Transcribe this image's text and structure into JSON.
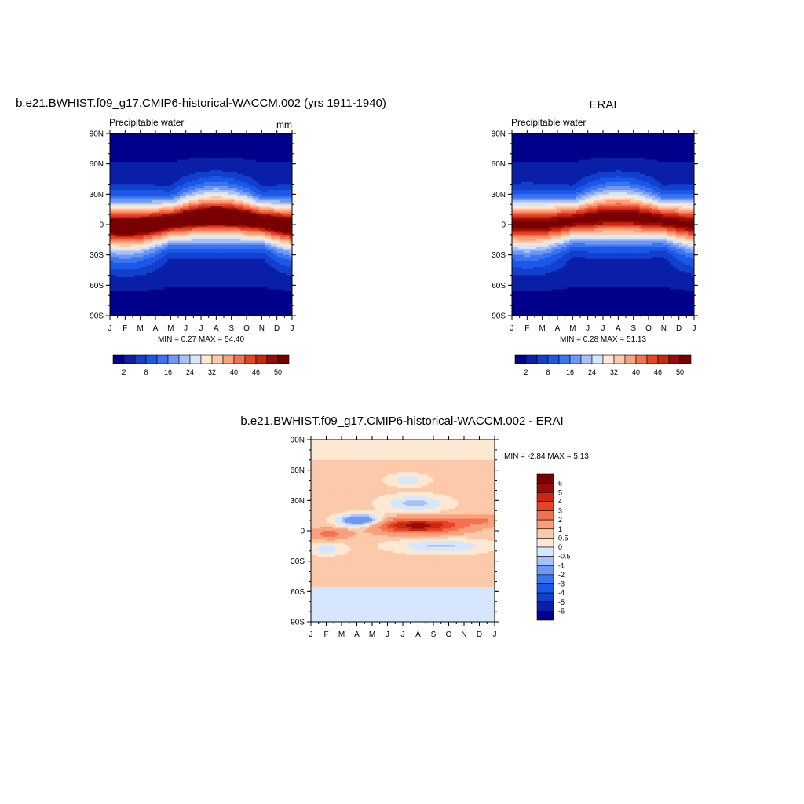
{
  "chart_data": [
    {
      "type": "heatmap",
      "id": "model",
      "title": "b.e21.BWHIST.f09_g17.CMIP6-historical-WACCM.002 (yrs 1911-1940)",
      "subtitle_left": "Precipitable water",
      "units": "mm",
      "x_tick_labels": [
        "J",
        "F",
        "M",
        "A",
        "M",
        "J",
        "J",
        "A",
        "S",
        "O",
        "N",
        "D",
        "J"
      ],
      "y_tick_labels": [
        "90N",
        "60N",
        "30N",
        "0",
        "30S",
        "60S",
        "90S"
      ],
      "xlim": [
        0,
        12
      ],
      "ylim": [
        -90,
        90
      ],
      "stats": "MIN =   0.27 MAX =  54.40",
      "colorbar_ticks": [
        "2",
        "8",
        "16",
        "24",
        "32",
        "40",
        "46",
        "50"
      ],
      "itcz": {
        "peak": 54.4,
        "lat_jan": -2,
        "lat_amp": 10
      }
    },
    {
      "type": "heatmap",
      "id": "obs",
      "title": "ERAI",
      "subtitle_left": "Precipitable water",
      "x_tick_labels": [
        "J",
        "F",
        "M",
        "A",
        "M",
        "J",
        "J",
        "A",
        "S",
        "O",
        "N",
        "D",
        "J"
      ],
      "y_tick_labels": [
        "90N",
        "60N",
        "30N",
        "0",
        "30S",
        "60S",
        "90S"
      ],
      "xlim": [
        0,
        12
      ],
      "ylim": [
        -90,
        90
      ],
      "stats": "MIN =   0.28 MAX =  51.13",
      "colorbar_ticks": [
        "2",
        "8",
        "16",
        "24",
        "32",
        "40",
        "46",
        "50"
      ],
      "itcz": {
        "peak": 51.1,
        "lat_jan": 0,
        "lat_amp": 8
      }
    },
    {
      "type": "heatmap",
      "id": "diff",
      "title": "b.e21.BWHIST.f09_g17.CMIP6-historical-WACCM.002 - ERAI",
      "x_tick_labels": [
        "J",
        "F",
        "M",
        "A",
        "M",
        "J",
        "J",
        "A",
        "S",
        "O",
        "N",
        "D",
        "J"
      ],
      "y_tick_labels": [
        "90N",
        "60N",
        "30N",
        "0",
        "30S",
        "60S",
        "90S"
      ],
      "xlim": [
        0,
        12
      ],
      "ylim": [
        -90,
        90
      ],
      "stats": "MIN =  -2.84 MAX =   5.13",
      "colorbar_ticks": [
        "6",
        "5",
        "4",
        "3",
        "2",
        "1",
        "0.5",
        "0",
        "-0.5",
        "-1",
        "-2",
        "-3",
        "-4",
        "-5",
        "-6"
      ]
    }
  ],
  "colors": {
    "main_scale": [
      "#00008a",
      "#0a1fa8",
      "#1240cc",
      "#1c58e8",
      "#3a74f4",
      "#6e98f8",
      "#a8c0fa",
      "#d6e6fc",
      "#fde9d3",
      "#fcc9aa",
      "#f9a07c",
      "#f47150",
      "#e84424",
      "#c8280e",
      "#960c0a",
      "#780000"
    ],
    "diff_scale": [
      "#00008a",
      "#0a1fa8",
      "#1240cc",
      "#1c58e8",
      "#3a74f4",
      "#6e98f8",
      "#a8c0fa",
      "#d6e6fc",
      "#fde9d3",
      "#fcc9aa",
      "#f9a07c",
      "#f47150",
      "#e84424",
      "#c8280e",
      "#960c0a",
      "#780000"
    ]
  }
}
